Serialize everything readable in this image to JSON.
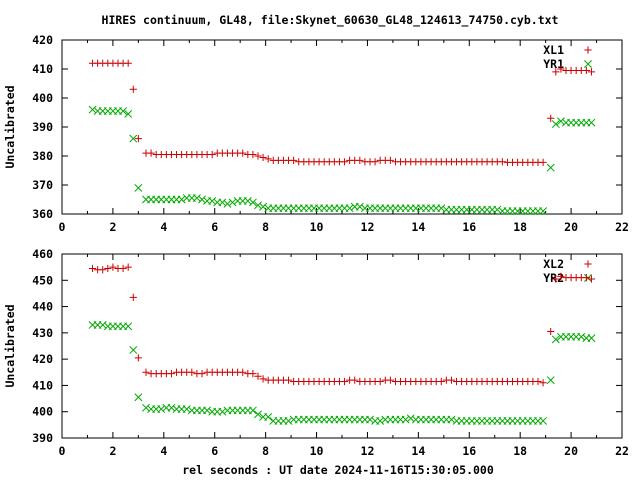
{
  "chart_data": [
    {
      "type": "scatter",
      "title": "HIRES continuum, GL48, file:Skynet_60630_GL48_124613_74750.cyb.txt",
      "xlabel": "",
      "ylabel": "Uncalibrated",
      "xlim": [
        0,
        22
      ],
      "ylim": [
        360,
        420
      ],
      "xticks": [
        "0",
        "2",
        "4",
        "6",
        "8",
        "10",
        "12",
        "14",
        "16",
        "18",
        "20",
        "22"
      ],
      "yticks": [
        "360",
        "370",
        "380",
        "390",
        "400",
        "410",
        "420"
      ],
      "legend": "top-right",
      "series": [
        {
          "name": "XL1",
          "color": "#cc0000",
          "marker": "plus",
          "x": [
            1.2,
            1.4,
            1.6,
            1.8,
            2.0,
            2.2,
            2.4,
            2.6,
            2.8,
            3.0,
            3.3,
            3.5,
            3.7,
            3.9,
            4.1,
            4.3,
            4.5,
            4.7,
            4.9,
            5.1,
            5.3,
            5.5,
            5.7,
            5.9,
            6.1,
            6.3,
            6.5,
            6.7,
            6.9,
            7.1,
            7.3,
            7.5,
            7.7,
            7.9,
            8.1,
            8.3,
            8.5,
            8.7,
            8.9,
            9.1,
            9.3,
            9.5,
            9.7,
            9.9,
            10.1,
            10.3,
            10.5,
            10.7,
            10.9,
            11.1,
            11.3,
            11.5,
            11.7,
            11.9,
            12.1,
            12.3,
            12.5,
            12.7,
            12.9,
            13.1,
            13.3,
            13.5,
            13.7,
            13.9,
            14.1,
            14.3,
            14.5,
            14.7,
            14.9,
            15.1,
            15.3,
            15.5,
            15.7,
            15.9,
            16.1,
            16.3,
            16.5,
            16.7,
            16.9,
            17.1,
            17.3,
            17.5,
            17.7,
            17.9,
            18.1,
            18.3,
            18.5,
            18.7,
            18.9,
            19.2,
            19.4,
            19.6,
            19.8,
            20.0,
            20.2,
            20.4,
            20.6,
            20.8
          ],
          "y": [
            412,
            412,
            412,
            412,
            412,
            412,
            412,
            412,
            403,
            386,
            381,
            381,
            380.5,
            380.5,
            380.5,
            380.5,
            380.5,
            380.5,
            380.5,
            380.5,
            380.5,
            380.5,
            380.5,
            380.5,
            381,
            381,
            381,
            381,
            381,
            381,
            380.5,
            380.5,
            380,
            379.5,
            379,
            378.5,
            378.5,
            378.5,
            378.5,
            378.5,
            378,
            378,
            378,
            378,
            378,
            378,
            378,
            378,
            378,
            378,
            378.5,
            378.5,
            378.5,
            378,
            378,
            378,
            378.5,
            378.5,
            378.5,
            378,
            378,
            378,
            378,
            378,
            378,
            378,
            378,
            378,
            378,
            378,
            378,
            378,
            378,
            378,
            378,
            378,
            378,
            378,
            378,
            378,
            378,
            377.8,
            377.8,
            377.8,
            377.8,
            377.8,
            377.8,
            377.8,
            377.8,
            393,
            409,
            410,
            409.5,
            409.5,
            409.5,
            409.5,
            409.5,
            409
          ]
        },
        {
          "name": "YR1",
          "color": "#00aa00",
          "marker": "cross",
          "x": [
            1.2,
            1.4,
            1.6,
            1.8,
            2.0,
            2.2,
            2.4,
            2.6,
            2.8,
            3.0,
            3.3,
            3.5,
            3.7,
            3.9,
            4.1,
            4.3,
            4.5,
            4.7,
            4.9,
            5.1,
            5.3,
            5.5,
            5.7,
            5.9,
            6.1,
            6.3,
            6.5,
            6.7,
            6.9,
            7.1,
            7.3,
            7.5,
            7.7,
            7.9,
            8.1,
            8.3,
            8.5,
            8.7,
            8.9,
            9.1,
            9.3,
            9.5,
            9.7,
            9.9,
            10.1,
            10.3,
            10.5,
            10.7,
            10.9,
            11.1,
            11.3,
            11.5,
            11.7,
            11.9,
            12.1,
            12.3,
            12.5,
            12.7,
            12.9,
            13.1,
            13.3,
            13.5,
            13.7,
            13.9,
            14.1,
            14.3,
            14.5,
            14.7,
            14.9,
            15.1,
            15.3,
            15.5,
            15.7,
            15.9,
            16.1,
            16.3,
            16.5,
            16.7,
            16.9,
            17.1,
            17.3,
            17.5,
            17.7,
            17.9,
            18.1,
            18.3,
            18.5,
            18.7,
            18.9,
            19.2,
            19.4,
            19.6,
            19.8,
            20.0,
            20.2,
            20.4,
            20.6,
            20.8
          ],
          "y": [
            396,
            395.5,
            395.5,
            395.5,
            395.5,
            395.5,
            395.5,
            394.5,
            386,
            369,
            365,
            365,
            365,
            365,
            365,
            365,
            365,
            365,
            365.5,
            365.5,
            365.5,
            365,
            364.5,
            364.5,
            364,
            364,
            363.5,
            364,
            364.5,
            364.5,
            364.5,
            364,
            363,
            362.5,
            362,
            362,
            362,
            362,
            362,
            362,
            362,
            362,
            362,
            362,
            362,
            362,
            362,
            362,
            362,
            362,
            362,
            362.5,
            362.5,
            362,
            362,
            362,
            362,
            362,
            362,
            362,
            362,
            362,
            362,
            362,
            362,
            362,
            362,
            362,
            362,
            361.5,
            361.5,
            361.5,
            361.5,
            361.5,
            361.5,
            361.5,
            361.5,
            361.5,
            361.5,
            361.5,
            361,
            361,
            361,
            361,
            361,
            361,
            361,
            361,
            361,
            376,
            391,
            392,
            391.5,
            391.5,
            391.5,
            391.5,
            391.5,
            391.5
          ]
        }
      ]
    },
    {
      "type": "scatter",
      "title": "",
      "xlabel": "rel seconds : UT date 2024-11-16T15:30:05.000",
      "ylabel": "Uncalibrated",
      "xlim": [
        0,
        22
      ],
      "ylim": [
        390,
        460
      ],
      "xticks": [
        "0",
        "2",
        "4",
        "6",
        "8",
        "10",
        "12",
        "14",
        "16",
        "18",
        "20",
        "22"
      ],
      "yticks": [
        "390",
        "400",
        "410",
        "420",
        "430",
        "440",
        "450",
        "460"
      ],
      "legend": "top-right",
      "series": [
        {
          "name": "XL2",
          "color": "#cc0000",
          "marker": "plus",
          "x": [
            1.2,
            1.4,
            1.6,
            1.8,
            2.0,
            2.2,
            2.4,
            2.6,
            2.8,
            3.0,
            3.3,
            3.5,
            3.7,
            3.9,
            4.1,
            4.3,
            4.5,
            4.7,
            4.9,
            5.1,
            5.3,
            5.5,
            5.7,
            5.9,
            6.1,
            6.3,
            6.5,
            6.7,
            6.9,
            7.1,
            7.3,
            7.5,
            7.7,
            7.9,
            8.1,
            8.3,
            8.5,
            8.7,
            8.9,
            9.1,
            9.3,
            9.5,
            9.7,
            9.9,
            10.1,
            10.3,
            10.5,
            10.7,
            10.9,
            11.1,
            11.3,
            11.5,
            11.7,
            11.9,
            12.1,
            12.3,
            12.5,
            12.7,
            12.9,
            13.1,
            13.3,
            13.5,
            13.7,
            13.9,
            14.1,
            14.3,
            14.5,
            14.7,
            14.9,
            15.1,
            15.3,
            15.5,
            15.7,
            15.9,
            16.1,
            16.3,
            16.5,
            16.7,
            16.9,
            17.1,
            17.3,
            17.5,
            17.7,
            17.9,
            18.1,
            18.3,
            18.5,
            18.7,
            18.9,
            19.2,
            19.4,
            19.6,
            19.8,
            20.0,
            20.2,
            20.4,
            20.6,
            20.8
          ],
          "y": [
            454.5,
            454,
            454,
            454.5,
            455,
            454.5,
            454.5,
            455,
            443.5,
            420.5,
            415,
            414.5,
            414.5,
            414.5,
            414.5,
            414.5,
            415,
            415,
            415,
            415,
            414.5,
            414.5,
            415,
            415,
            415,
            415,
            415,
            415,
            415,
            415,
            414.5,
            414.5,
            413.5,
            412.5,
            412,
            412,
            412,
            412,
            412,
            411.5,
            411.5,
            411.5,
            411.5,
            411.5,
            411.5,
            411.5,
            411.5,
            411.5,
            411.5,
            411.5,
            412,
            412,
            411.5,
            411.5,
            411.5,
            411.5,
            411.5,
            412,
            412,
            411.5,
            411.5,
            411.5,
            411.5,
            411.5,
            411.5,
            411.5,
            411.5,
            411.5,
            411.5,
            412,
            412,
            411.5,
            411.5,
            411.5,
            411.5,
            411.5,
            411.5,
            411.5,
            411.5,
            411.5,
            411.5,
            411.5,
            411.5,
            411.5,
            411.5,
            411.5,
            411.5,
            411.5,
            411,
            430.5,
            450.5,
            451.5,
            451,
            451,
            451,
            451,
            451,
            450.5
          ]
        },
        {
          "name": "YR2",
          "color": "#00aa00",
          "marker": "cross",
          "x": [
            1.2,
            1.4,
            1.6,
            1.8,
            2.0,
            2.2,
            2.4,
            2.6,
            2.8,
            3.0,
            3.3,
            3.5,
            3.7,
            3.9,
            4.1,
            4.3,
            4.5,
            4.7,
            4.9,
            5.1,
            5.3,
            5.5,
            5.7,
            5.9,
            6.1,
            6.3,
            6.5,
            6.7,
            6.9,
            7.1,
            7.3,
            7.5,
            7.7,
            7.9,
            8.1,
            8.3,
            8.5,
            8.7,
            8.9,
            9.1,
            9.3,
            9.5,
            9.7,
            9.9,
            10.1,
            10.3,
            10.5,
            10.7,
            10.9,
            11.1,
            11.3,
            11.5,
            11.7,
            11.9,
            12.1,
            12.3,
            12.5,
            12.7,
            12.9,
            13.1,
            13.3,
            13.5,
            13.7,
            13.9,
            14.1,
            14.3,
            14.5,
            14.7,
            14.9,
            15.1,
            15.3,
            15.5,
            15.7,
            15.9,
            16.1,
            16.3,
            16.5,
            16.7,
            16.9,
            17.1,
            17.3,
            17.5,
            17.7,
            17.9,
            18.1,
            18.3,
            18.5,
            18.7,
            18.9,
            19.2,
            19.4,
            19.6,
            19.8,
            20.0,
            20.2,
            20.4,
            20.6,
            20.8
          ],
          "y": [
            433,
            433,
            433,
            432.5,
            432.5,
            432.5,
            432.5,
            432.5,
            423.5,
            405.5,
            401.5,
            401,
            401,
            401,
            401.5,
            401.5,
            401,
            401,
            401,
            400.5,
            400.5,
            400.5,
            400.5,
            400,
            400,
            400,
            400.5,
            400.5,
            400.5,
            400.5,
            400.5,
            400.5,
            399,
            398,
            398,
            396.5,
            396.5,
            396.5,
            396.5,
            397,
            397,
            397,
            397,
            397,
            397,
            397,
            397,
            397,
            397,
            397,
            397,
            397,
            397,
            397,
            397,
            396.5,
            396.5,
            397,
            397,
            397,
            397,
            397,
            397.5,
            397,
            397,
            397,
            397,
            397,
            397,
            397,
            397,
            396.5,
            396.5,
            396.5,
            396.5,
            396.5,
            396.5,
            396.5,
            396.5,
            396.5,
            396.5,
            396.5,
            396.5,
            396.5,
            396.5,
            396.5,
            396.5,
            396.5,
            396.5,
            412,
            427.5,
            428.5,
            428.5,
            428.5,
            428.5,
            428.5,
            428,
            428
          ]
        }
      ]
    }
  ]
}
